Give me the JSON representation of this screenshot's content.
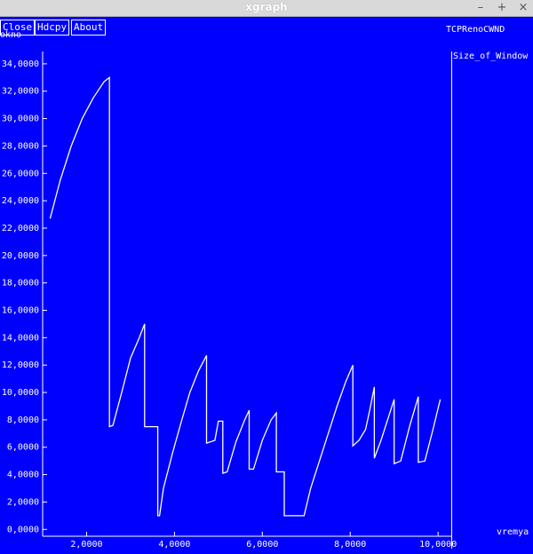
{
  "window": {
    "title": "xgraph",
    "controls": {
      "minimize": "–",
      "maximize": "+",
      "close": "×"
    }
  },
  "toolbar": {
    "close_label": "Close",
    "hdcpy_label": "Hdcpy",
    "about_label": "About"
  },
  "graph": {
    "title": "TCPRenoCWND",
    "legend": "Size_of_Window"
  },
  "chart_data": {
    "type": "line",
    "xlabel": "vremya",
    "ylabel": "okno",
    "xlim": [
      1.0,
      10.3
    ],
    "ylim": [
      -0.5,
      34.9
    ],
    "x_ticks": [
      2,
      4,
      6,
      8,
      10
    ],
    "x_tick_labels": [
      "2,0000",
      "4,0000",
      "6,0000",
      "8,0000",
      "10,0000"
    ],
    "y_ticks": [
      0,
      2,
      4,
      6,
      8,
      10,
      12,
      14,
      16,
      18,
      20,
      22,
      24,
      26,
      28,
      30,
      32,
      34
    ],
    "y_tick_labels": [
      "0,0000",
      "2,0000",
      "4,0000",
      "6,0000",
      "8,0000",
      "10,0000",
      "12,0000",
      "14,0000",
      "16,0000",
      "18,0000",
      "20,0000",
      "22,0000",
      "24,0000",
      "26,0000",
      "28,0000",
      "30,0000",
      "32,0000",
      "34,0000"
    ],
    "series": [
      {
        "name": "Size_of_Window",
        "color": "#ffffff",
        "points": [
          [
            1.17,
            22.7
          ],
          [
            1.4,
            25.5
          ],
          [
            1.65,
            28.0
          ],
          [
            1.9,
            30.0
          ],
          [
            2.15,
            31.5
          ],
          [
            2.4,
            32.7
          ],
          [
            2.52,
            33.0
          ],
          [
            2.52,
            7.5
          ],
          [
            2.6,
            7.6
          ],
          [
            2.8,
            10.0
          ],
          [
            3.0,
            12.5
          ],
          [
            3.2,
            14.0
          ],
          [
            3.32,
            15.0
          ],
          [
            3.32,
            7.5
          ],
          [
            3.62,
            7.5
          ],
          [
            3.62,
            1.0
          ],
          [
            3.66,
            1.0
          ],
          [
            3.75,
            3.0
          ],
          [
            3.95,
            5.5
          ],
          [
            4.15,
            7.8
          ],
          [
            4.35,
            10.0
          ],
          [
            4.55,
            11.6
          ],
          [
            4.73,
            12.7
          ],
          [
            4.73,
            6.3
          ],
          [
            4.92,
            6.5
          ],
          [
            5.0,
            7.9
          ],
          [
            5.1,
            7.9
          ],
          [
            5.1,
            4.1
          ],
          [
            5.2,
            4.2
          ],
          [
            5.4,
            6.4
          ],
          [
            5.6,
            8.0
          ],
          [
            5.7,
            8.7
          ],
          [
            5.7,
            4.4
          ],
          [
            5.8,
            4.4
          ],
          [
            6.0,
            6.5
          ],
          [
            6.2,
            8.0
          ],
          [
            6.32,
            8.5
          ],
          [
            6.32,
            4.2
          ],
          [
            6.5,
            4.2
          ],
          [
            6.5,
            1.0
          ],
          [
            6.95,
            1.0
          ],
          [
            7.1,
            3.0
          ],
          [
            7.3,
            5.0
          ],
          [
            7.5,
            7.0
          ],
          [
            7.7,
            9.0
          ],
          [
            7.9,
            10.8
          ],
          [
            8.06,
            12.0
          ],
          [
            8.06,
            6.1
          ],
          [
            8.2,
            6.5
          ],
          [
            8.35,
            7.3
          ],
          [
            8.45,
            8.8
          ],
          [
            8.55,
            10.4
          ],
          [
            8.55,
            5.2
          ],
          [
            8.7,
            6.5
          ],
          [
            8.9,
            8.5
          ],
          [
            9.0,
            9.5
          ],
          [
            9.0,
            4.8
          ],
          [
            9.15,
            5.0
          ],
          [
            9.35,
            7.5
          ],
          [
            9.55,
            9.7
          ],
          [
            9.55,
            4.9
          ],
          [
            9.7,
            5.0
          ],
          [
            9.9,
            7.5
          ],
          [
            10.05,
            9.5
          ]
        ]
      }
    ]
  }
}
